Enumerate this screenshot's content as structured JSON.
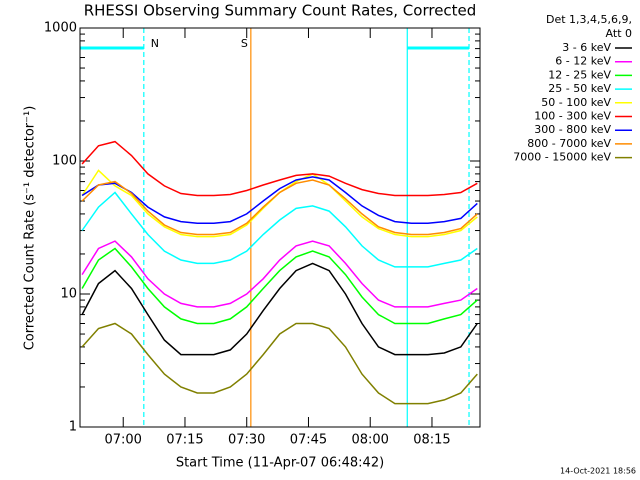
{
  "chart_data": {
    "type": "line",
    "title": "RHESSI Observing Summary Count Rates, Corrected",
    "x_label": "Start Time (11-Apr-07 06:48:42)",
    "y_label": "Corrected Count Rate (s⁻¹ detector⁻¹)",
    "legend_header": [
      "Det 1,3,4,5,6,9,",
      "Att 0"
    ],
    "footer": "14-Oct-2021 18:56",
    "log_y": true,
    "xlim": [
      "06:49:30",
      "08:26:40"
    ],
    "xticks": [
      "07:00",
      "07:15",
      "07:30",
      "07:45",
      "08:00",
      "08:15"
    ],
    "ylim": [
      1,
      1000
    ],
    "yticks": [
      1,
      10,
      100,
      1000
    ],
    "x": [
      "06:50",
      "06:54",
      "06:58",
      "07:02",
      "07:06",
      "07:10",
      "07:14",
      "07:18",
      "07:22",
      "07:26",
      "07:30",
      "07:34",
      "07:38",
      "07:42",
      "07:46",
      "07:50",
      "07:54",
      "07:58",
      "08:02",
      "08:06",
      "08:10",
      "08:14",
      "08:18",
      "08:22",
      "08:26"
    ],
    "series": [
      {
        "name": "3 - 6 keV",
        "color": "#000000",
        "values": [
          7,
          12,
          15,
          11,
          7,
          4.5,
          3.5,
          3.5,
          3.5,
          3.8,
          5,
          7.5,
          11,
          15,
          17,
          15,
          10,
          6,
          4,
          3.5,
          3.5,
          3.5,
          3.6,
          4,
          6
        ]
      },
      {
        "name": "6 - 12 keV",
        "color": "#ff00ff",
        "values": [
          14,
          22,
          25,
          19,
          13,
          10,
          8.5,
          8,
          8,
          8.5,
          10,
          13,
          18,
          23,
          25,
          23,
          17,
          12,
          9,
          8,
          8,
          8,
          8.5,
          9,
          11
        ]
      },
      {
        "name": "12 - 25 keV",
        "color": "#00ff00",
        "values": [
          11,
          18,
          22,
          16,
          11,
          8,
          6.5,
          6,
          6,
          6.5,
          8,
          11,
          15,
          19,
          21,
          19,
          14,
          9.5,
          7,
          6,
          6,
          6,
          6.5,
          7,
          9
        ]
      },
      {
        "name": "25 - 50 keV",
        "color": "#00ffff",
        "values": [
          30,
          45,
          58,
          40,
          28,
          21,
          18,
          17,
          17,
          18,
          21,
          28,
          36,
          44,
          46,
          42,
          32,
          23,
          18,
          16,
          16,
          16,
          17,
          18,
          22
        ]
      },
      {
        "name": "50 - 100 keV",
        "color": "#ffff00",
        "values": [
          55,
          85,
          65,
          55,
          40,
          32,
          28,
          27,
          27,
          28,
          33,
          44,
          58,
          70,
          80,
          66,
          50,
          38,
          31,
          28,
          27,
          27,
          28,
          30,
          38
        ]
      },
      {
        "name": "100 - 300 keV",
        "color": "#ff0000",
        "values": [
          95,
          130,
          140,
          110,
          80,
          65,
          57,
          55,
          55,
          56,
          60,
          66,
          72,
          78,
          80,
          77,
          68,
          61,
          57,
          55,
          55,
          55,
          56,
          58,
          68
        ]
      },
      {
        "name": "300 - 800 keV",
        "color": "#0000ff",
        "values": [
          55,
          66,
          68,
          58,
          45,
          38,
          35,
          34,
          34,
          35,
          40,
          50,
          62,
          72,
          76,
          72,
          58,
          46,
          39,
          35,
          34,
          34,
          35,
          37,
          48
        ]
      },
      {
        "name": "800 - 7000 keV",
        "color": "#ff8c00",
        "values": [
          50,
          66,
          70,
          57,
          42,
          33,
          29,
          28,
          28,
          29,
          34,
          45,
          58,
          68,
          72,
          66,
          52,
          40,
          32,
          29,
          28,
          28,
          29,
          31,
          40
        ]
      },
      {
        "name": "7000 - 15000 keV",
        "color": "#808000",
        "values": [
          4,
          5.5,
          6,
          5,
          3.5,
          2.5,
          2,
          1.8,
          1.8,
          2,
          2.5,
          3.5,
          5,
          6,
          6,
          5.5,
          4,
          2.5,
          1.8,
          1.5,
          1.5,
          1.5,
          1.6,
          1.8,
          2.5
        ]
      }
    ],
    "markers": [
      {
        "x": "07:05",
        "color": "#00ffff",
        "dashed": true,
        "label": "N"
      },
      {
        "x": "07:31",
        "color": "#ff8c00",
        "dashed": false,
        "label": "S"
      },
      {
        "x": "08:09",
        "color": "#00ffff",
        "dashed": false
      },
      {
        "x": "08:24",
        "color": "#00ffff",
        "dashed": true
      }
    ]
  }
}
